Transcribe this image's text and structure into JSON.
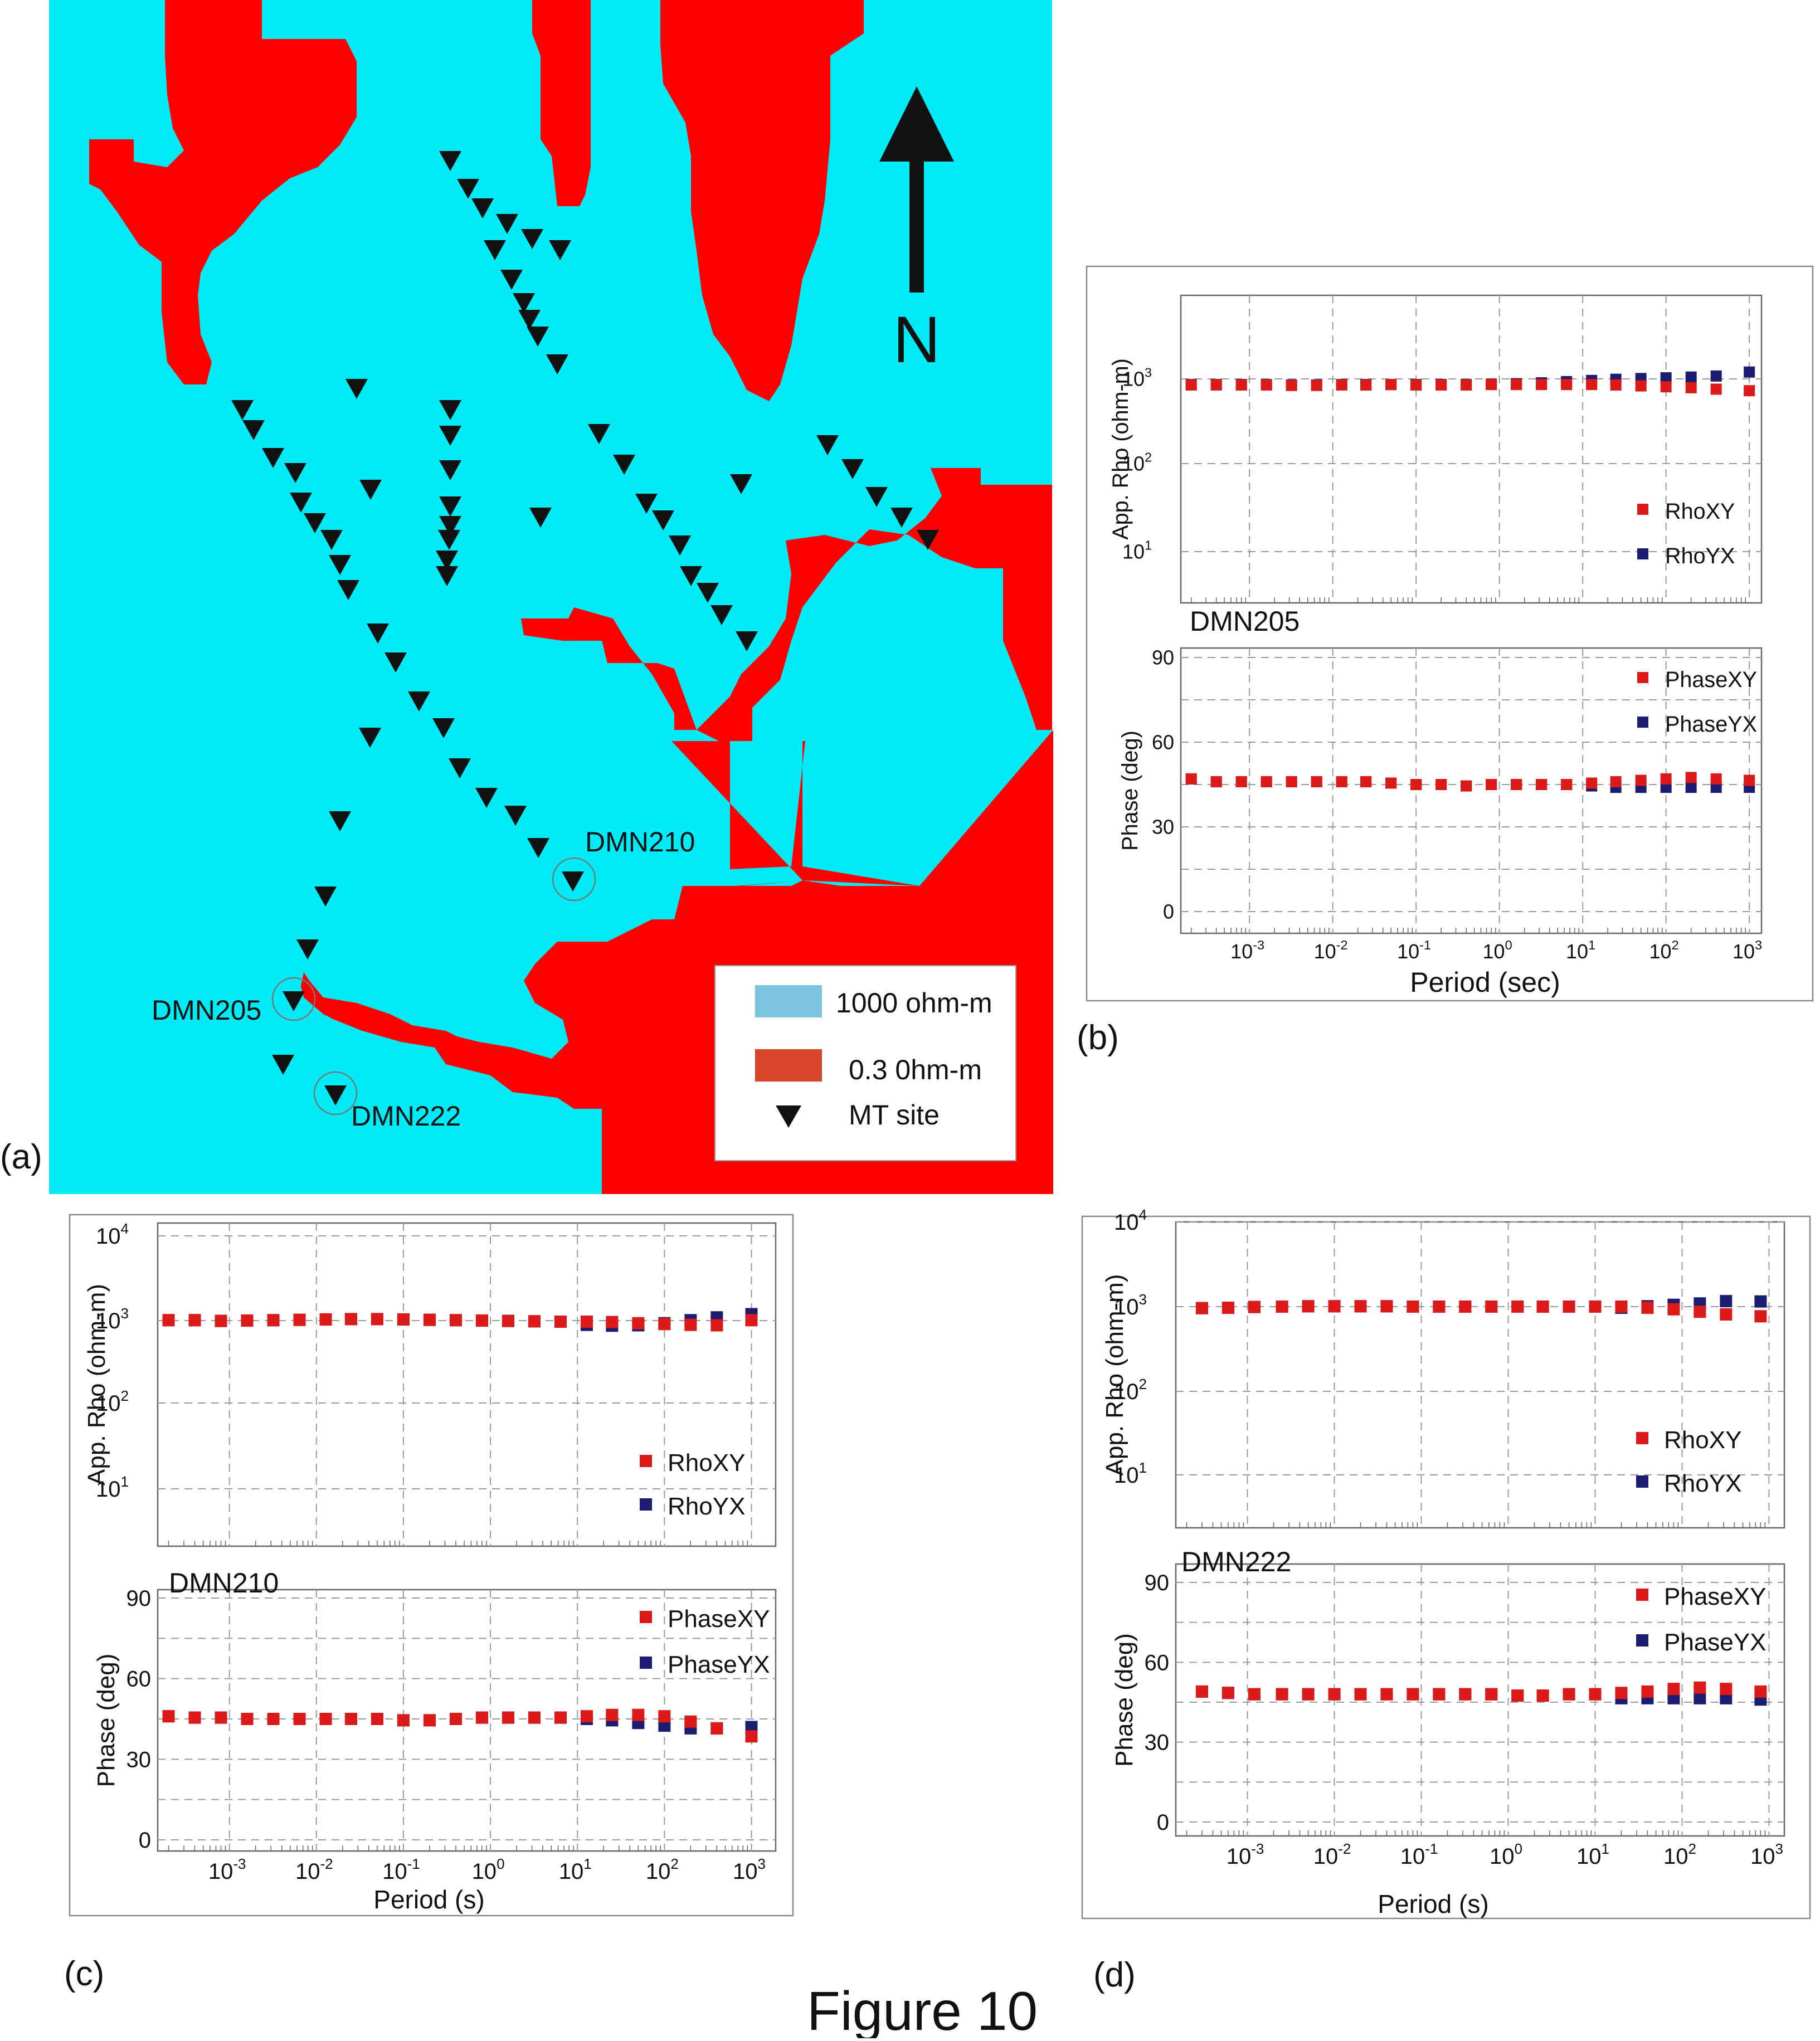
{
  "figure_title": "Figure 10",
  "colors": {
    "conductive": "#ff0000",
    "resistive": "#00ebf5",
    "legend_resistive_swatch": "#7ec3df",
    "legend_conductive_swatch": "#d8442a",
    "rho_xy": "#dd1a1a",
    "rho_yx": "#1c1c70",
    "grid": "#9a9a9a"
  },
  "map": {
    "panel_label": "(a)",
    "north_label": "N",
    "legend": {
      "resistive_label": "1000 ohm-m",
      "conductive_label": "0.3 0hm-m",
      "site_label": "MT site"
    },
    "site_labels": {
      "dmn205": "DMN205",
      "dmn210": "DMN210",
      "dmn222": "DMN222"
    }
  },
  "chart_data": [
    {
      "id": "b",
      "type": "scatter",
      "panel_label": "(b)",
      "station": "DMN205",
      "xlabel": "Period (sec)",
      "xscale": "log",
      "xlim": [
        0.00015,
        1400
      ],
      "xtick_exponents": [
        -3,
        -2,
        -1,
        0,
        1,
        2,
        3
      ],
      "rho": {
        "ylabel": "App. Rho (ohm-m)",
        "yscale": "log",
        "ylim": [
          4,
          10000
        ],
        "ytick_exponents": [
          1,
          2,
          3
        ],
        "legend": [
          "RhoXY",
          "RhoYX"
        ],
        "periods": [
          0.0002,
          0.0004,
          0.0008,
          0.0016,
          0.0032,
          0.0064,
          0.0128,
          0.025,
          0.05,
          0.1,
          0.2,
          0.4,
          0.8,
          1.6,
          3.2,
          6.4,
          12.8,
          25,
          50,
          100,
          200,
          400,
          1000
        ],
        "series": [
          {
            "name": "RhoXY",
            "values": [
              850,
              850,
              850,
              850,
              840,
              840,
              850,
              850,
              860,
              850,
              850,
              850,
              860,
              860,
              860,
              860,
              860,
              850,
              830,
              810,
              790,
              760,
              730
            ]
          },
          {
            "name": "RhoYX",
            "values": [
              860,
              860,
              860,
              860,
              850,
              850,
              860,
              860,
              860,
              860,
              860,
              860,
              870,
              880,
              900,
              930,
              960,
              990,
              1010,
              1030,
              1050,
              1080,
              1200
            ]
          }
        ]
      },
      "phase": {
        "ylabel": "Phase (deg)",
        "ylim": [
          -5,
          95
        ],
        "yticks": [
          0,
          30,
          60,
          90
        ],
        "legend": [
          "PhaseXY",
          "PhaseYX"
        ],
        "periods": [
          0.0002,
          0.0004,
          0.0008,
          0.0016,
          0.0032,
          0.0064,
          0.0128,
          0.025,
          0.05,
          0.1,
          0.2,
          0.4,
          0.8,
          1.6,
          3.2,
          6.4,
          12.8,
          25,
          50,
          100,
          200,
          400,
          1000
        ],
        "series": [
          {
            "name": "PhaseXY",
            "values": [
              47,
              46,
              46,
              46,
              46,
              46,
              46,
              46,
              45.5,
              45,
              45,
              44.5,
              45,
              45,
              45,
              45,
              45.5,
              46,
              46.5,
              47,
              47.5,
              47,
              46.5
            ]
          },
          {
            "name": "PhaseYX",
            "values": [
              47,
              46,
              46,
              46,
              46,
              46,
              46,
              46,
              45.5,
              45,
              45,
              44.5,
              45,
              45,
              45,
              45,
              44.5,
              44,
              44,
              44,
              44,
              44,
              44
            ]
          }
        ]
      }
    },
    {
      "id": "c",
      "type": "scatter",
      "panel_label": "(c)",
      "station": "DMN210",
      "xlabel": "Period (s)",
      "xscale": "log",
      "xlim": [
        0.00015,
        1900
      ],
      "xtick_exponents": [
        -3,
        -2,
        -1,
        0,
        1,
        2,
        3
      ],
      "rho": {
        "ylabel": "App. Rho (ohm-m)",
        "yscale": "log",
        "ylim": [
          3,
          20000
        ],
        "ytick_exponents": [
          1,
          2,
          3,
          4
        ],
        "legend": [
          "RhoXY",
          "RhoYX"
        ],
        "periods": [
          0.0002,
          0.0004,
          0.0008,
          0.0016,
          0.0032,
          0.0064,
          0.0128,
          0.025,
          0.05,
          0.1,
          0.2,
          0.4,
          0.8,
          1.6,
          3.2,
          6.4,
          12.8,
          25,
          50,
          100,
          200,
          400,
          1000
        ],
        "series": [
          {
            "name": "RhoXY",
            "values": [
              1000,
              1000,
              980,
              990,
              1000,
              1010,
              1020,
              1030,
              1030,
              1020,
              1010,
              1000,
              990,
              980,
              970,
              960,
              960,
              950,
              920,
              900,
              880,
              870,
              1000
            ]
          },
          {
            "name": "RhoYX",
            "values": [
              1000,
              1000,
              980,
              990,
              1000,
              1010,
              1020,
              1030,
              1030,
              1020,
              1010,
              1000,
              990,
              980,
              970,
              960,
              880,
              860,
              870,
              920,
              1000,
              1080,
              1180
            ]
          }
        ]
      },
      "phase": {
        "ylabel": "Phase (deg)",
        "ylim": [
          -5,
          95
        ],
        "yticks": [
          0,
          30,
          60,
          90
        ],
        "legend": [
          "PhaseXY",
          "PhaseYX"
        ],
        "periods": [
          0.0002,
          0.0004,
          0.0008,
          0.0016,
          0.0032,
          0.0064,
          0.0128,
          0.025,
          0.05,
          0.1,
          0.2,
          0.4,
          0.8,
          1.6,
          3.2,
          6.4,
          12.8,
          25,
          50,
          100,
          200,
          400,
          1000
        ],
        "series": [
          {
            "name": "PhaseXY",
            "values": [
              46,
              45.5,
              45.5,
              45,
              45,
              45,
              45,
              45,
              45,
              44.5,
              44.5,
              45,
              45.5,
              45.5,
              45.5,
              45.5,
              46,
              46.5,
              46.5,
              46,
              44,
              41.5,
              38.5
            ]
          },
          {
            "name": "PhaseYX",
            "values": [
              46,
              45.5,
              45.5,
              45,
              45,
              45,
              45,
              45,
              45,
              44.5,
              44.5,
              45,
              45.5,
              45.5,
              45.5,
              45.5,
              45,
              44.5,
              43.5,
              42.5,
              41.5,
              41.5,
              42
            ]
          }
        ]
      }
    },
    {
      "id": "d",
      "type": "scatter",
      "panel_label": "(d)",
      "station": "DMN222",
      "xlabel": "Period (s)",
      "xscale": "log",
      "xlim": [
        0.00015,
        1500
      ],
      "xtick_exponents": [
        -3,
        -2,
        -1,
        0,
        1,
        2,
        3
      ],
      "rho": {
        "ylabel": "App. Rho (ohm-m)",
        "yscale": "log",
        "ylim": [
          2,
          12000
        ],
        "ytick_exponents": [
          1,
          2,
          3,
          4
        ],
        "legend": [
          "RhoXY",
          "RhoYX"
        ],
        "periods": [
          0.0003,
          0.0006,
          0.0012,
          0.0025,
          0.005,
          0.01,
          0.02,
          0.04,
          0.08,
          0.16,
          0.32,
          0.64,
          1.28,
          2.5,
          5,
          10,
          20,
          40,
          80,
          160,
          320,
          800
        ],
        "series": [
          {
            "name": "RhoXY",
            "values": [
              950,
              960,
              980,
              990,
              1000,
              1000,
              1000,
              1000,
              990,
              990,
              990,
              990,
              990,
              990,
              990,
              990,
              990,
              960,
              920,
              860,
              800,
              760
            ]
          },
          {
            "name": "RhoYX",
            "values": [
              950,
              960,
              980,
              990,
              1000,
              1000,
              1000,
              1000,
              990,
              990,
              990,
              990,
              990,
              990,
              990,
              990,
              960,
              1000,
              1040,
              1080,
              1150,
              1140
            ]
          }
        ]
      },
      "phase": {
        "ylabel": "Phase (deg)",
        "ylim": [
          -5,
          98
        ],
        "yticks": [
          0,
          30,
          60,
          90
        ],
        "legend": [
          "PhaseXY",
          "PhaseYX"
        ],
        "periods": [
          0.0003,
          0.0006,
          0.0012,
          0.0025,
          0.005,
          0.01,
          0.02,
          0.04,
          0.08,
          0.16,
          0.32,
          0.64,
          1.28,
          2.5,
          5,
          10,
          20,
          40,
          80,
          160,
          320,
          800
        ],
        "series": [
          {
            "name": "PhaseXY",
            "values": [
              49,
              48.5,
              48,
              48,
              48,
              48,
              48,
              48,
              48,
              48,
              48,
              48,
              47.5,
              47.5,
              48,
              48,
              48.5,
              49,
              50,
              50.5,
              50,
              49
            ]
          },
          {
            "name": "PhaseYX",
            "values": [
              49,
              48.5,
              48,
              48,
              48,
              48,
              48,
              48,
              48,
              48,
              48,
              48,
              47.5,
              47.5,
              48,
              48,
              46.5,
              46.5,
              46.5,
              46.5,
              46.5,
              46
            ]
          }
        ]
      }
    }
  ]
}
